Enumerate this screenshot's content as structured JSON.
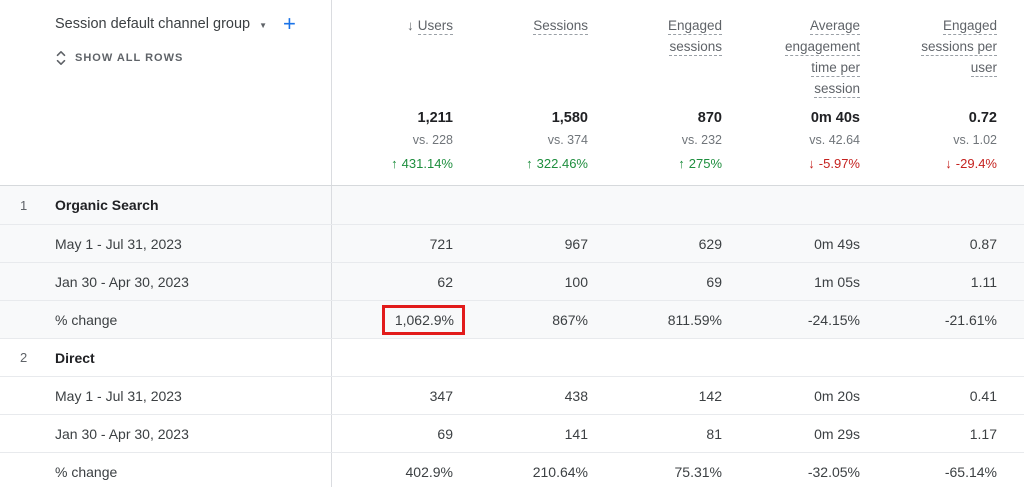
{
  "table": {
    "dimension_header": {
      "label": "Session default channel group",
      "show_all_rows_label": "SHOW ALL ROWS"
    },
    "columns": [
      {
        "key": "users",
        "lines": [
          "Users"
        ],
        "sorted": "desc"
      },
      {
        "key": "sessions",
        "lines": [
          "Sessions"
        ]
      },
      {
        "key": "engaged-sessions",
        "lines": [
          "Engaged",
          "sessions"
        ]
      },
      {
        "key": "avg-engagement-time-per-session",
        "lines": [
          "Average",
          "engagement",
          "time per",
          "session"
        ]
      },
      {
        "key": "engaged-sessions-per-user",
        "lines": [
          "Engaged",
          "sessions per",
          "user"
        ]
      }
    ],
    "totals": [
      {
        "value": "1,211",
        "comparison": "vs. 228",
        "change": "431.14%",
        "direction": "up"
      },
      {
        "value": "1,580",
        "comparison": "vs. 374",
        "change": "322.46%",
        "direction": "up"
      },
      {
        "value": "870",
        "comparison": "vs. 232",
        "change": "275%",
        "direction": "up"
      },
      {
        "value": "0m 40s",
        "comparison": "vs. 42.64",
        "change": "-5.97%",
        "direction": "down"
      },
      {
        "value": "0.72",
        "comparison": "vs. 1.02",
        "change": "-29.4%",
        "direction": "down"
      }
    ],
    "groups": [
      {
        "index": "1",
        "name": "Organic Search",
        "rows": [
          {
            "label": "May 1 - Jul 31, 2023",
            "values": [
              "721",
              "967",
              "629",
              "0m 49s",
              "0.87"
            ]
          },
          {
            "label": "Jan 30 - Apr 30, 2023",
            "values": [
              "62",
              "100",
              "69",
              "1m 05s",
              "1.11"
            ]
          },
          {
            "label": "% change",
            "values": [
              "1,062.9%",
              "867%",
              "811.59%",
              "-24.15%",
              "-21.61%"
            ]
          }
        ]
      },
      {
        "index": "2",
        "name": "Direct",
        "rows": [
          {
            "label": "May 1 - Jul 31, 2023",
            "values": [
              "347",
              "438",
              "142",
              "0m 20s",
              "0.41"
            ]
          },
          {
            "label": "Jan 30 - Apr 30, 2023",
            "values": [
              "69",
              "141",
              "81",
              "0m 29s",
              "1.17"
            ]
          },
          {
            "label": "% change",
            "values": [
              "402.9%",
              "210.64%",
              "75.31%",
              "-32.05%",
              "-65.14%"
            ]
          }
        ]
      }
    ],
    "annotation": {
      "group": 0,
      "row": 2,
      "col": 0
    }
  },
  "icons": {
    "sort_desc": "↓",
    "dropdown": "▼",
    "add": "+",
    "trend_up": "↑",
    "trend_down": "↓",
    "unfold_more": "unfold-more"
  },
  "colors": {
    "positive": "#1e8e3e",
    "negative": "#c5221f",
    "accent_blue": "#1a73e8",
    "annotation_red": "#e21b1b"
  }
}
